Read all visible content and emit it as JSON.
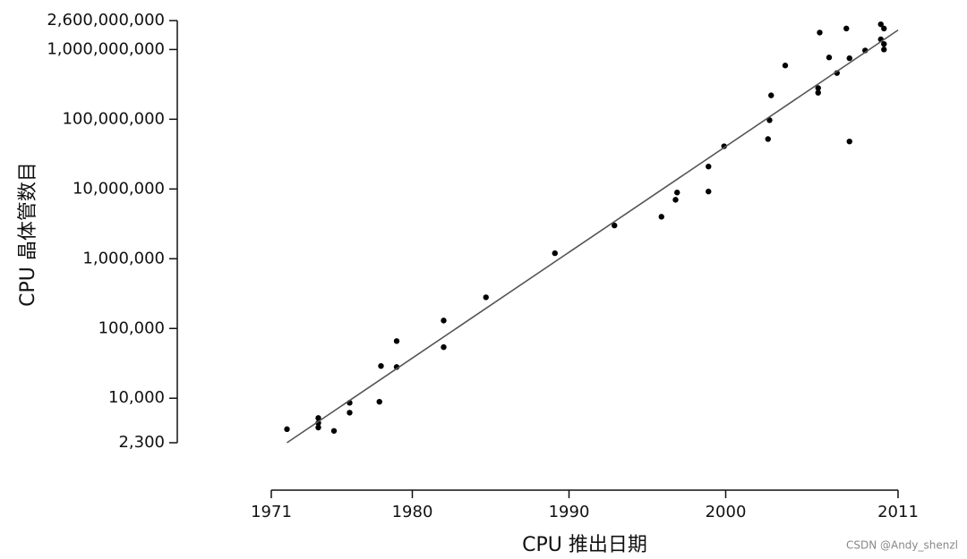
{
  "chart_data": {
    "type": "scatter",
    "x_label": "CPU 推出日期",
    "y_label": "CPU 晶体管数目",
    "watermark": "CSDN @Andy_shenzl",
    "log_y": true,
    "xlim": [
      1971,
      2011
    ],
    "xticks": [
      1971,
      1980,
      1990,
      2000,
      2011
    ],
    "ylim": [
      2300,
      2600000000
    ],
    "yticks": [
      {
        "value": 2300,
        "label": "2,300"
      },
      {
        "value": 10000,
        "label": "10,000"
      },
      {
        "value": 100000,
        "label": "100,000"
      },
      {
        "value": 1000000,
        "label": "1,000,000"
      },
      {
        "value": 10000000,
        "label": "10,000,000"
      },
      {
        "value": 100000000,
        "label": "100,000,000"
      },
      {
        "value": 1000000000,
        "label": "1,000,000,000"
      },
      {
        "value": 2600000000,
        "label": "2,600,000,000"
      }
    ],
    "series": [
      {
        "type": "scatter",
        "color": "#000000",
        "x": [
          1972.0,
          1974.0,
          1974.0,
          1974.0,
          1975.0,
          1976.0,
          1976.0,
          1977.9,
          1978.0,
          1979.0,
          1979.0,
          1982.0,
          1982.0,
          1984.7,
          1989.1,
          1992.9,
          1995.9,
          1996.8,
          1996.9,
          1998.9,
          1998.9,
          1999.9,
          2002.7,
          2002.8,
          2002.9,
          2003.8,
          2005.9,
          2005.9,
          2006.0,
          2006.6,
          2007.1,
          2007.7,
          2007.9,
          2007.9,
          2008.9,
          2009.9,
          2010.1,
          2009.9,
          2010.1,
          2010.1
        ],
        "values": [
          3600,
          5200,
          4400,
          3800,
          3400,
          8600,
          6200,
          8900,
          29000,
          66000,
          28000,
          130000,
          54000,
          280000,
          1200000,
          3000000,
          4000000,
          7000000,
          8900000,
          21000000,
          9200000,
          41000000,
          52000000,
          97000000,
          220000000,
          590000000,
          280000000,
          240000000,
          1750000000,
          770000000,
          460000000,
          2000000000,
          48000000,
          750000000,
          970000000,
          2300000000,
          2000000000,
          1400000000,
          1200000000,
          1000000000
        ]
      },
      {
        "type": "line",
        "color": "#555555",
        "x": [
          1972,
          2011
        ],
        "values": [
          2300,
          1900000000
        ]
      }
    ]
  }
}
